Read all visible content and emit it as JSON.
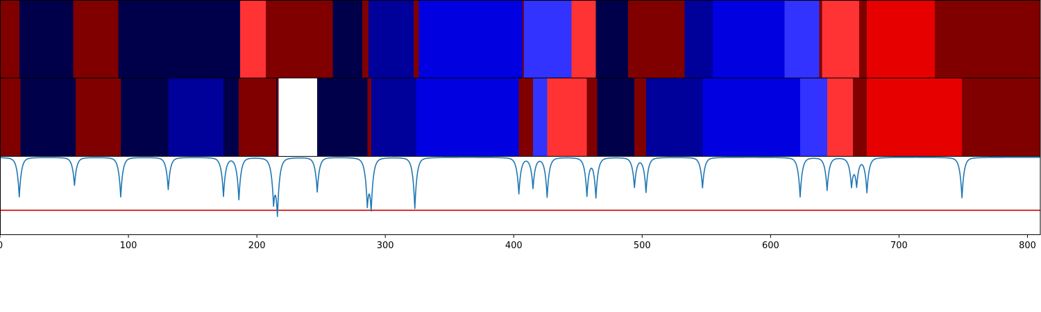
{
  "chart_data": [
    {
      "type": "heatmap",
      "row": "top",
      "xlim": [
        0,
        810
      ],
      "segments": [
        {
          "start": 0,
          "end": 15,
          "color": "#800000"
        },
        {
          "start": 15,
          "end": 57,
          "color": "#00004a"
        },
        {
          "start": 57,
          "end": 92,
          "color": "#800000"
        },
        {
          "start": 92,
          "end": 187,
          "color": "#00004a"
        },
        {
          "start": 187,
          "end": 207,
          "color": "#ff3333"
        },
        {
          "start": 207,
          "end": 259,
          "color": "#800000"
        },
        {
          "start": 259,
          "end": 282,
          "color": "#00004a"
        },
        {
          "start": 282,
          "end": 287,
          "color": "#800000"
        },
        {
          "start": 287,
          "end": 322,
          "color": "#00009a"
        },
        {
          "start": 322,
          "end": 326,
          "color": "#800000"
        },
        {
          "start": 326,
          "end": 407,
          "color": "#0000e0"
        },
        {
          "start": 407,
          "end": 408,
          "color": "#800000"
        },
        {
          "start": 408,
          "end": 445,
          "color": "#3333ff"
        },
        {
          "start": 445,
          "end": 464,
          "color": "#ff3333"
        },
        {
          "start": 464,
          "end": 489,
          "color": "#00004a"
        },
        {
          "start": 489,
          "end": 533,
          "color": "#800000"
        },
        {
          "start": 533,
          "end": 555,
          "color": "#00009a"
        },
        {
          "start": 555,
          "end": 611,
          "color": "#0000e0"
        },
        {
          "start": 611,
          "end": 638,
          "color": "#3333ff"
        },
        {
          "start": 638,
          "end": 640,
          "color": "#800000"
        },
        {
          "start": 640,
          "end": 669,
          "color": "#ff3333"
        },
        {
          "start": 669,
          "end": 675,
          "color": "#800000"
        },
        {
          "start": 675,
          "end": 728,
          "color": "#e60000"
        },
        {
          "start": 728,
          "end": 810,
          "color": "#800000"
        }
      ]
    },
    {
      "type": "heatmap",
      "row": "middle",
      "xlim": [
        0,
        810
      ],
      "segments": [
        {
          "start": 0,
          "end": 16,
          "color": "#800000"
        },
        {
          "start": 16,
          "end": 59,
          "color": "#00004a"
        },
        {
          "start": 59,
          "end": 94,
          "color": "#800000"
        },
        {
          "start": 94,
          "end": 131,
          "color": "#00004a"
        },
        {
          "start": 131,
          "end": 174,
          "color": "#00009a"
        },
        {
          "start": 174,
          "end": 186,
          "color": "#00004a"
        },
        {
          "start": 186,
          "end": 215,
          "color": "#800000"
        },
        {
          "start": 215,
          "end": 216,
          "color": "#00004a"
        },
        {
          "start": 216,
          "end": 217,
          "color": "#800000"
        },
        {
          "start": 217,
          "end": 247,
          "color": "#ffffff"
        },
        {
          "start": 247,
          "end": 286,
          "color": "#00004a"
        },
        {
          "start": 286,
          "end": 289,
          "color": "#800000"
        },
        {
          "start": 289,
          "end": 324,
          "color": "#00009a"
        },
        {
          "start": 324,
          "end": 404,
          "color": "#0000e0"
        },
        {
          "start": 404,
          "end": 415,
          "color": "#800000"
        },
        {
          "start": 415,
          "end": 426,
          "color": "#3333ff"
        },
        {
          "start": 426,
          "end": 457,
          "color": "#ff3333"
        },
        {
          "start": 457,
          "end": 465,
          "color": "#800000"
        },
        {
          "start": 465,
          "end": 494,
          "color": "#00004a"
        },
        {
          "start": 494,
          "end": 503,
          "color": "#800000"
        },
        {
          "start": 503,
          "end": 547,
          "color": "#00009a"
        },
        {
          "start": 547,
          "end": 623,
          "color": "#0000e0"
        },
        {
          "start": 623,
          "end": 644,
          "color": "#3333ff"
        },
        {
          "start": 644,
          "end": 664,
          "color": "#ff3333"
        },
        {
          "start": 664,
          "end": 675,
          "color": "#800000"
        },
        {
          "start": 675,
          "end": 749,
          "color": "#e60000"
        },
        {
          "start": 749,
          "end": 810,
          "color": "#800000"
        }
      ]
    },
    {
      "type": "line",
      "row": "bottom",
      "xlim": [
        0,
        810
      ],
      "ylim": [
        -1.0,
        0.0
      ],
      "grid": false,
      "x_ticks": [
        0,
        100,
        200,
        300,
        400,
        500,
        600,
        700,
        800
      ],
      "x_tick_labels": [
        "0",
        "100",
        "200",
        "300",
        "400",
        "500",
        "600",
        "700",
        "800"
      ],
      "threshold": {
        "y": -0.69,
        "color": "#cc0000"
      },
      "series": [
        {
          "color": "#1f77b4",
          "baseline": -0.01,
          "dips": [
            {
              "x": 15,
              "depth": 0.48
            },
            {
              "x": 58,
              "depth": 0.34
            },
            {
              "x": 94,
              "depth": 0.48
            },
            {
              "x": 131,
              "depth": 0.39
            },
            {
              "x": 174,
              "depth": 0.47
            },
            {
              "x": 186,
              "depth": 0.51
            },
            {
              "x": 213,
              "depth": 0.48
            },
            {
              "x": 216,
              "depth": 0.63
            },
            {
              "x": 247,
              "depth": 0.42
            },
            {
              "x": 286,
              "depth": 0.51
            },
            {
              "x": 289,
              "depth": 0.56
            },
            {
              "x": 323,
              "depth": 0.62
            },
            {
              "x": 404,
              "depth": 0.44
            },
            {
              "x": 415,
              "depth": 0.37
            },
            {
              "x": 426,
              "depth": 0.48
            },
            {
              "x": 457,
              "depth": 0.46
            },
            {
              "x": 464,
              "depth": 0.48
            },
            {
              "x": 494,
              "depth": 0.36
            },
            {
              "x": 503,
              "depth": 0.42
            },
            {
              "x": 547,
              "depth": 0.37
            },
            {
              "x": 623,
              "depth": 0.48
            },
            {
              "x": 644,
              "depth": 0.4
            },
            {
              "x": 663,
              "depth": 0.33
            },
            {
              "x": 667,
              "depth": 0.32
            },
            {
              "x": 675,
              "depth": 0.42
            },
            {
              "x": 749,
              "depth": 0.49
            }
          ]
        }
      ]
    }
  ]
}
